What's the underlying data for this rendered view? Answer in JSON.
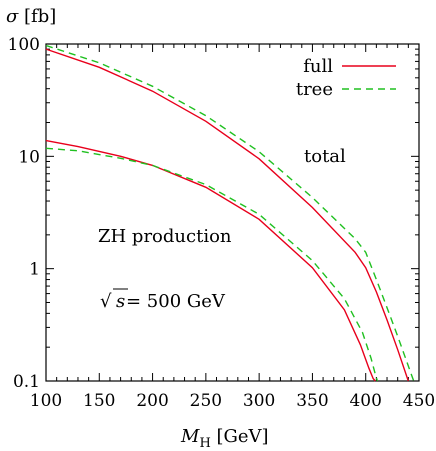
{
  "chart_data": {
    "type": "line",
    "title": "",
    "ylabel": "σ [fb]",
    "xlabel": "M_H [GeV]",
    "xlabel_main": "M",
    "xlabel_sub": "H",
    "xlabel_unit": " [GeV]",
    "ylabel_main": "σ",
    "ylabel_unit": " [fb]",
    "xscale": "linear",
    "yscale": "log",
    "xlim": [
      100,
      450
    ],
    "ylim": [
      0.1,
      100
    ],
    "xticks": [
      100,
      150,
      200,
      250,
      300,
      350,
      400,
      450
    ],
    "xtick_labels": [
      "100",
      "150",
      "200",
      "250",
      "300",
      "350",
      "400",
      "450"
    ],
    "yticks": [
      0.1,
      1,
      10,
      100
    ],
    "ytick_labels": [
      "0.1",
      "1",
      "10",
      "100"
    ],
    "grid": false,
    "legend_position": "top-right",
    "annotations": {
      "total": "total",
      "process": "ZH production",
      "energy_sqrt": "√",
      "energy_s": "s",
      "energy_value": " = 500 GeV"
    },
    "series": [
      {
        "name": "full",
        "group": "total",
        "color": "#e8001c",
        "style": "solid",
        "x": [
          100,
          150,
          200,
          250,
          300,
          350,
          390,
          400,
          410,
          420,
          430,
          440
        ],
        "y": [
          90,
          62,
          38,
          20.5,
          9.5,
          3.5,
          1.4,
          1.02,
          0.62,
          0.35,
          0.19,
          0.1
        ]
      },
      {
        "name": "tree",
        "group": "total",
        "color": "#20c020",
        "style": "dashed",
        "x": [
          100,
          150,
          200,
          250,
          300,
          350,
          390,
          400,
          410,
          420,
          430,
          445
        ],
        "y": [
          97,
          68,
          42,
          23,
          11,
          4.3,
          1.85,
          1.4,
          0.8,
          0.45,
          0.25,
          0.1
        ]
      },
      {
        "name": "",
        "group": "zh",
        "color": "#e8001c",
        "style": "solid",
        "x": [
          100,
          130,
          170,
          200,
          250,
          300,
          350,
          380,
          395,
          403,
          407,
          409
        ],
        "y": [
          13.8,
          12.2,
          10.0,
          8.3,
          5.3,
          2.75,
          1.02,
          0.43,
          0.21,
          0.13,
          0.105,
          0.1
        ]
      },
      {
        "name": "",
        "group": "zh",
        "color": "#20c020",
        "style": "dashed",
        "x": [
          100,
          130,
          170,
          200,
          250,
          300,
          350,
          380,
          397,
          405,
          409,
          411
        ],
        "y": [
          11.8,
          11.2,
          9.6,
          8.3,
          5.6,
          3.05,
          1.18,
          0.54,
          0.27,
          0.16,
          0.115,
          0.1
        ]
      }
    ]
  }
}
